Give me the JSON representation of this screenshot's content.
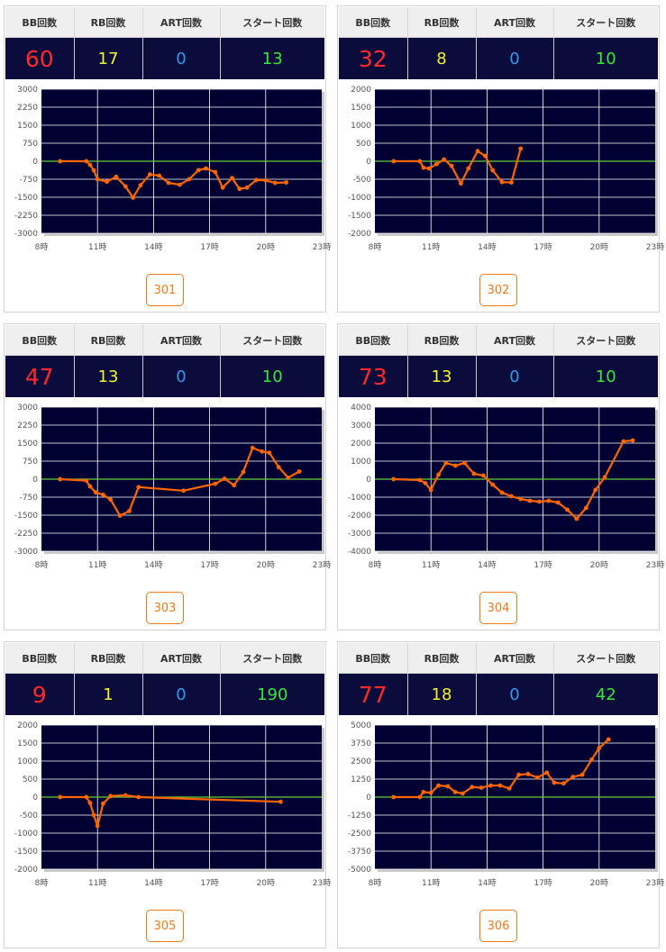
{
  "colors": {
    "bb": "#ff2a2a",
    "rb": "#f2f230",
    "art": "#2f9bf0",
    "start": "#36e836",
    "plot_bg": "#000033",
    "line": "#ff6600",
    "zero_line": "#66cc33",
    "accent": "#f07a1a"
  },
  "header_labels": {
    "bb": "BB回数",
    "rb": "RB回数",
    "art": "ART回数",
    "start": "スタート回数"
  },
  "machines": [
    {
      "number": "301",
      "bb": "60",
      "rb": "17",
      "art": "0",
      "start": "13",
      "chart_data": {
        "type": "line",
        "x_labels": [
          "8時",
          "11時",
          "14時",
          "17時",
          "20時",
          "23時"
        ],
        "xlim": [
          8,
          23
        ],
        "y_ticks": [
          3000,
          2250,
          1500,
          750,
          0,
          -750,
          -1500,
          -2250,
          -3000
        ],
        "ylim": [
          -3000,
          3000
        ],
        "grid": true,
        "series": [
          {
            "values": [
              [
                9,
                0
              ],
              [
                10.4,
                0
              ],
              [
                10.6,
                -150
              ],
              [
                10.8,
                -380
              ],
              [
                11,
                -750
              ],
              [
                11.5,
                -850
              ],
              [
                12,
                -650
              ],
              [
                12.5,
                -1050
              ],
              [
                12.9,
                -1520
              ],
              [
                13.3,
                -1000
              ],
              [
                13.8,
                -550
              ],
              [
                14.3,
                -600
              ],
              [
                14.8,
                -900
              ],
              [
                15.4,
                -980
              ],
              [
                15.9,
                -750
              ],
              [
                16.4,
                -370
              ],
              [
                16.8,
                -300
              ],
              [
                17.3,
                -450
              ],
              [
                17.7,
                -1100
              ],
              [
                18.2,
                -700
              ],
              [
                18.6,
                -1150
              ],
              [
                19,
                -1100
              ],
              [
                19.5,
                -780
              ],
              [
                20,
                -800
              ],
              [
                20.5,
                -900
              ],
              [
                21.1,
                -880
              ]
            ]
          }
        ]
      }
    },
    {
      "number": "302",
      "bb": "32",
      "rb": "8",
      "art": "0",
      "start": "10",
      "chart_data": {
        "type": "line",
        "x_labels": [
          "8時",
          "11時",
          "14時",
          "17時",
          "20時",
          "23時"
        ],
        "xlim": [
          8,
          23
        ],
        "y_ticks": [
          2000,
          1500,
          1000,
          500,
          0,
          -500,
          -1000,
          -1500,
          -2000
        ],
        "ylim": [
          -2000,
          2000
        ],
        "grid": true,
        "series": [
          {
            "values": [
              [
                9,
                0
              ],
              [
                10.4,
                0
              ],
              [
                10.6,
                -180
              ],
              [
                10.9,
                -200
              ],
              [
                11.3,
                -80
              ],
              [
                11.7,
                50
              ],
              [
                12.1,
                -130
              ],
              [
                12.6,
                -620
              ],
              [
                13,
                -200
              ],
              [
                13.5,
                280
              ],
              [
                13.9,
                150
              ],
              [
                14.3,
                -250
              ],
              [
                14.8,
                -580
              ],
              [
                15.3,
                -590
              ],
              [
                15.8,
                350
              ]
            ]
          }
        ]
      }
    },
    {
      "number": "303",
      "bb": "47",
      "rb": "13",
      "art": "0",
      "start": "10",
      "chart_data": {
        "type": "line",
        "x_labels": [
          "8時",
          "11時",
          "14時",
          "17時",
          "20時",
          "23時"
        ],
        "xlim": [
          8,
          23
        ],
        "y_ticks": [
          3000,
          2250,
          1500,
          750,
          0,
          -750,
          -1500,
          -2250,
          -3000
        ],
        "ylim": [
          -3000,
          3000
        ],
        "grid": true,
        "series": [
          {
            "values": [
              [
                9,
                0
              ],
              [
                10.4,
                -60
              ],
              [
                10.6,
                -300
              ],
              [
                10.9,
                -550
              ],
              [
                11.3,
                -650
              ],
              [
                11.7,
                -850
              ],
              [
                12.2,
                -1520
              ],
              [
                12.7,
                -1330
              ],
              [
                13.2,
                -330
              ],
              [
                15.6,
                -480
              ],
              [
                17.3,
                -190
              ],
              [
                17.8,
                20
              ],
              [
                18.3,
                -250
              ],
              [
                18.8,
                300
              ],
              [
                19.3,
                1300
              ],
              [
                19.8,
                1150
              ],
              [
                20.2,
                1100
              ],
              [
                20.7,
                500
              ],
              [
                21.2,
                60
              ],
              [
                21.8,
                320
              ]
            ]
          }
        ]
      }
    },
    {
      "number": "304",
      "bb": "73",
      "rb": "13",
      "art": "0",
      "start": "10",
      "chart_data": {
        "type": "line",
        "x_labels": [
          "8時",
          "11時",
          "14時",
          "17時",
          "20時",
          "23時"
        ],
        "xlim": [
          8,
          23
        ],
        "y_ticks": [
          4000,
          3000,
          2000,
          1000,
          0,
          -1000,
          -2000,
          -3000,
          -4000
        ],
        "ylim": [
          -4000,
          4000
        ],
        "grid": true,
        "series": [
          {
            "values": [
              [
                9,
                0
              ],
              [
                10.4,
                -50
              ],
              [
                10.7,
                -220
              ],
              [
                11,
                -600
              ],
              [
                11.4,
                250
              ],
              [
                11.8,
                900
              ],
              [
                12.3,
                750
              ],
              [
                12.8,
                900
              ],
              [
                13.3,
                300
              ],
              [
                13.8,
                200
              ],
              [
                14.3,
                -300
              ],
              [
                14.8,
                -750
              ],
              [
                15.3,
                -950
              ],
              [
                15.8,
                -1100
              ],
              [
                16.3,
                -1200
              ],
              [
                16.8,
                -1250
              ],
              [
                17.3,
                -1200
              ],
              [
                17.8,
                -1300
              ],
              [
                18.3,
                -1700
              ],
              [
                18.8,
                -2200
              ],
              [
                19.3,
                -1600
              ],
              [
                19.8,
                -600
              ],
              [
                20.3,
                100
              ],
              [
                21.3,
                2100
              ],
              [
                21.8,
                2150
              ]
            ]
          }
        ]
      }
    },
    {
      "number": "305",
      "bb": "9",
      "rb": "1",
      "art": "0",
      "start": "190",
      "chart_data": {
        "type": "line",
        "x_labels": [
          "8時",
          "11時",
          "14時",
          "17時",
          "20時",
          "23時"
        ],
        "xlim": [
          8,
          23
        ],
        "y_ticks": [
          2000,
          1500,
          1000,
          500,
          0,
          -500,
          -1000,
          -1500,
          -2000
        ],
        "ylim": [
          -2000,
          2000
        ],
        "grid": true,
        "series": [
          {
            "values": [
              [
                9,
                0
              ],
              [
                10.4,
                0
              ],
              [
                10.6,
                -160
              ],
              [
                10.8,
                -500
              ],
              [
                11,
                -800
              ],
              [
                11.3,
                -180
              ],
              [
                11.7,
                30
              ],
              [
                12.5,
                50
              ],
              [
                13.2,
                0
              ],
              [
                20.8,
                -130
              ]
            ]
          }
        ]
      }
    },
    {
      "number": "306",
      "bb": "77",
      "rb": "18",
      "art": "0",
      "start": "42",
      "chart_data": {
        "type": "line",
        "x_labels": [
          "8時",
          "11時",
          "14時",
          "17時",
          "20時",
          "23時"
        ],
        "xlim": [
          8,
          23
        ],
        "y_ticks": [
          5000,
          3750,
          2500,
          1250,
          0,
          -1250,
          -2500,
          -3750,
          -5000
        ],
        "ylim": [
          -5000,
          5000
        ],
        "grid": true,
        "series": [
          {
            "values": [
              [
                9,
                0
              ],
              [
                10.4,
                0
              ],
              [
                10.6,
                350
              ],
              [
                11,
                300
              ],
              [
                11.4,
                800
              ],
              [
                11.9,
                750
              ],
              [
                12.3,
                350
              ],
              [
                12.7,
                250
              ],
              [
                13.2,
                700
              ],
              [
                13.7,
                650
              ],
              [
                14.2,
                800
              ],
              [
                14.7,
                800
              ],
              [
                15.2,
                600
              ],
              [
                15.7,
                1550
              ],
              [
                16.2,
                1600
              ],
              [
                16.7,
                1350
              ],
              [
                17.2,
                1700
              ],
              [
                17.6,
                1000
              ],
              [
                18.1,
                950
              ],
              [
                18.6,
                1400
              ],
              [
                19.1,
                1550
              ],
              [
                19.6,
                2600
              ],
              [
                20,
                3400
              ],
              [
                20.5,
                4000
              ]
            ]
          }
        ]
      }
    }
  ]
}
